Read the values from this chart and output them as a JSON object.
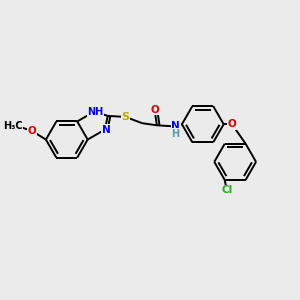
{
  "bg": "#ebebeb",
  "bond_color": "#000000",
  "lw": 1.4,
  "fs": 7.5,
  "r": 20,
  "colors": {
    "N": "#0000dd",
    "O": "#cc0000",
    "S": "#bbaa00",
    "Cl": "#22aa22",
    "C": "#000000",
    "NH": "#5599aa"
  }
}
